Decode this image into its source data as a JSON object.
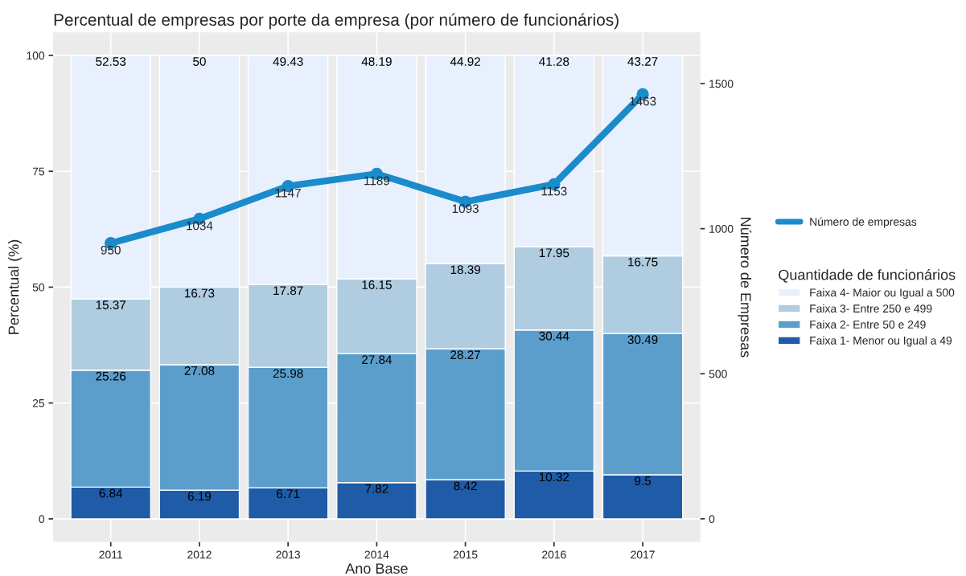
{
  "chart_data": {
    "type": "bar",
    "title": "Percentual de empresas por porte da empresa (por número de funcionários)",
    "xlabel": "Ano Base",
    "ylabel": "Percentual (%)",
    "y2label": "Número de Empresas",
    "legend_title": "Quantidade de funcionários",
    "categories": [
      "2011",
      "2012",
      "2013",
      "2014",
      "2015",
      "2016",
      "2017"
    ],
    "stacked": true,
    "data_labels": true,
    "grid": true,
    "legend": "right",
    "ylim": [
      -5,
      105
    ],
    "yticks": [
      0,
      25,
      50,
      75,
      100
    ],
    "y2lim": [
      -80,
      1677
    ],
    "y2ticks": [
      0,
      500,
      1000,
      1500
    ],
    "series": [
      {
        "name": "Faixa 1- Menor ou Igual a 49",
        "color": "#1f5ba6",
        "values": [
          6.84,
          6.19,
          6.71,
          7.82,
          8.42,
          10.32,
          9.5
        ]
      },
      {
        "name": "Faixa 2- Entre 50 e 249",
        "color": "#5b9ecc",
        "values": [
          25.26,
          27.08,
          25.98,
          27.84,
          28.27,
          30.44,
          30.49
        ]
      },
      {
        "name": "Faixa 3- Entre 250 e 499",
        "color": "#afcce1",
        "values": [
          15.37,
          16.73,
          17.87,
          16.15,
          18.39,
          17.95,
          16.75
        ]
      },
      {
        "name": "Faixa 4- Maior ou Igual a 500",
        "color": "#e9f0fd",
        "values": [
          52.53,
          50,
          49.43,
          48.19,
          44.92,
          41.28,
          43.27
        ]
      },
      {
        "name": "Número de empresas",
        "type": "line",
        "axis": "y2",
        "marker": "circle",
        "color": "#1a8bcb",
        "values": [
          950,
          1034,
          1147,
          1189,
          1093,
          1153,
          1463
        ]
      }
    ]
  }
}
